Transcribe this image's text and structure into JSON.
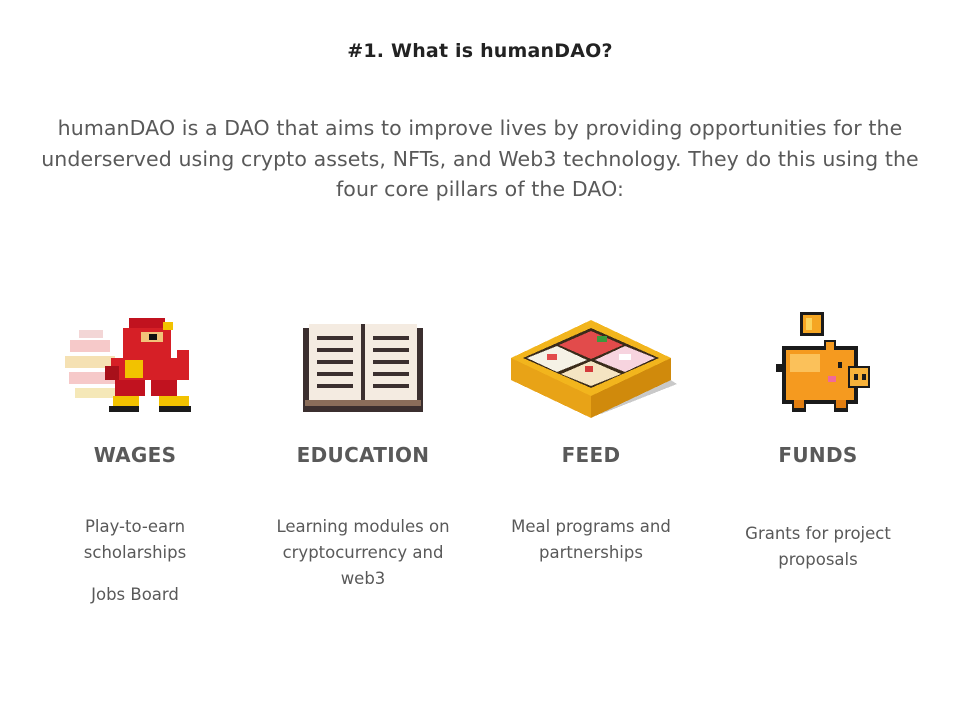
{
  "title": "#1. What is humanDAO?",
  "intro": "humanDAO is a DAO that aims to improve lives by providing opportunities for the underserved using crypto assets, NFTs, and Web3 technology. They do this using the four core pillars of the DAO:",
  "pillars": [
    {
      "name": "WAGES",
      "icon": "running-hero-icon",
      "description": "Play-to-earn scholarships",
      "extra": "Jobs Board"
    },
    {
      "name": "EDUCATION",
      "icon": "open-book-icon",
      "description": "Learning modules on cryptocurrency and web3"
    },
    {
      "name": "FEED",
      "icon": "bento-box-icon",
      "description": "Meal programs and partnerships"
    },
    {
      "name": "FUNDS",
      "icon": "piggy-bank-icon",
      "description": "Grants for project proposals"
    }
  ],
  "colors": {
    "title": "#222222",
    "text": "#595959",
    "background": "#ffffff"
  }
}
